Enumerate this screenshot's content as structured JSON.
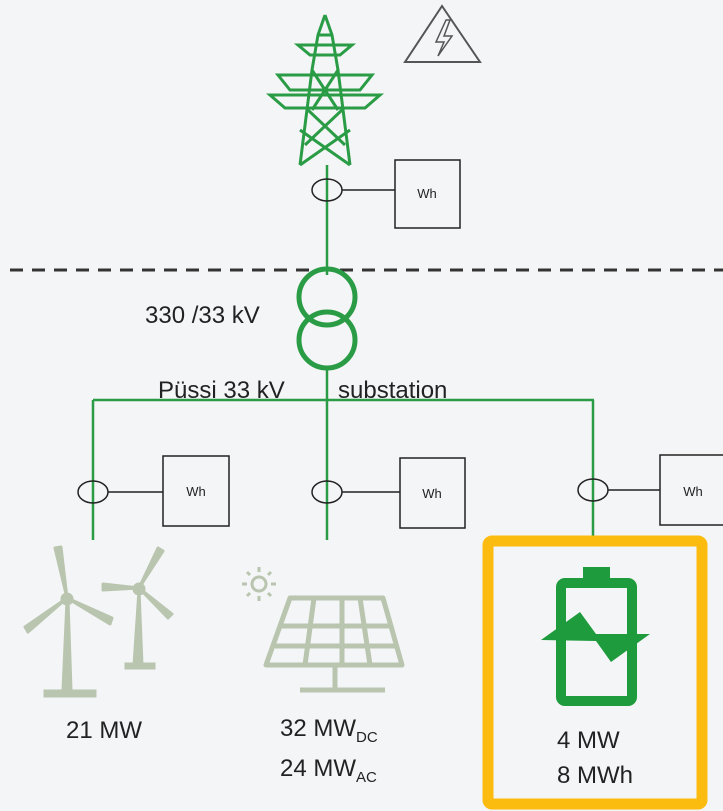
{
  "grid_connection": {
    "meter": "Wh"
  },
  "transformer": {
    "label": "330 /33 kV"
  },
  "busbar": {
    "name": "Püssi 33 kV",
    "suffix": "substation"
  },
  "feeders": [
    {
      "meter": "Wh",
      "capacity": "21 MW"
    },
    {
      "meter": "Wh",
      "capacity_dc": "32 MW",
      "dc_subscript": "DC",
      "capacity_ac": "24 MW",
      "ac_subscript": "AC"
    },
    {
      "meter": "Wh",
      "power": "4 MW",
      "energy": "8 MWh"
    }
  ]
}
